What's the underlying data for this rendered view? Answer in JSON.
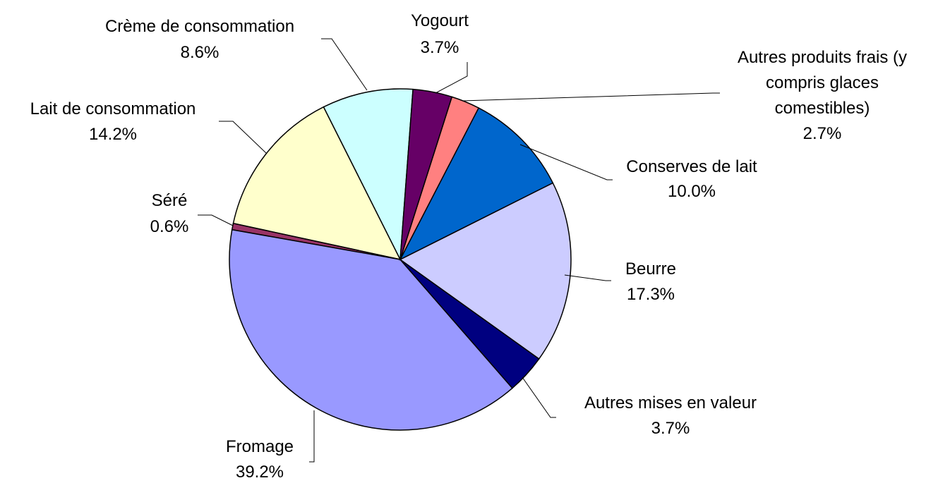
{
  "chart_data": {
    "type": "pie",
    "categories": [
      "Yogourt",
      "Autres produits frais (y compris glaces comestibles)",
      "Conserves de lait",
      "Beurre",
      "Autres mises en valeur",
      "Fromage",
      "Séré",
      "Lait de consommation",
      "Crème de consommation"
    ],
    "values": [
      3.7,
      2.7,
      10.0,
      17.3,
      3.7,
      39.2,
      0.6,
      14.2,
      8.6
    ],
    "value_labels": [
      "3.7%",
      "2.7%",
      "10.0%",
      "17.3%",
      "3.7%",
      "39.2%",
      "0.6%",
      "14.2%",
      "8.6%"
    ],
    "colors": [
      "#660066",
      "#ff8080",
      "#0066cc",
      "#ccccff",
      "#000080",
      "#9999ff",
      "#993366",
      "#ffffcc",
      "#ccffff"
    ]
  }
}
